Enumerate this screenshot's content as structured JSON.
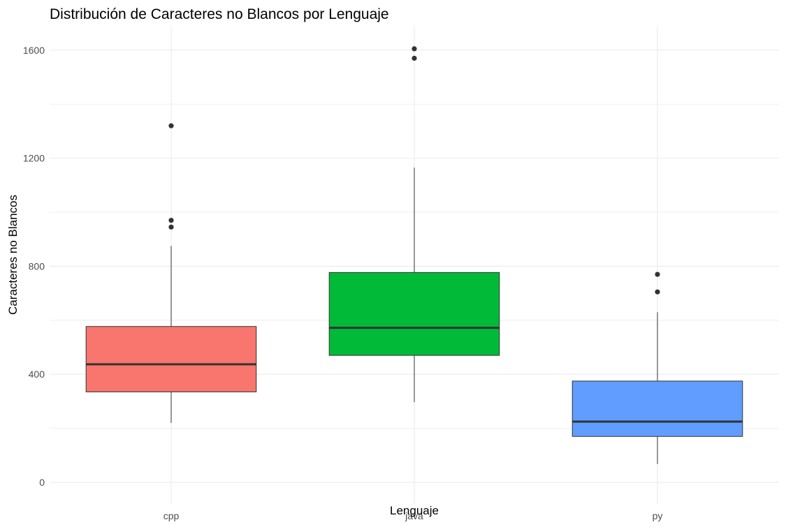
{
  "chart_data": {
    "type": "boxplot",
    "title": "Distribución de Caracteres no Blancos por Lenguaje",
    "xlabel": "Lenguaje",
    "ylabel": "Caracteres no Blancos",
    "ylim": [
      -80,
      1690
    ],
    "yticks": [
      0,
      400,
      800,
      1200,
      1600
    ],
    "grid": true,
    "legend": "none",
    "categories": [
      "cpp",
      "java",
      "py"
    ],
    "series": [
      {
        "category": "cpp",
        "color": "#F8766D",
        "whisker_low": 220,
        "q1": 335,
        "median": 437,
        "q3": 577,
        "whisker_high": 875,
        "outliers": [
          945,
          970,
          1320
        ]
      },
      {
        "category": "java",
        "color": "#00BA38",
        "whisker_low": 297,
        "q1": 470,
        "median": 572,
        "q3": 777,
        "whisker_high": 1165,
        "outliers": [
          1570,
          1605
        ]
      },
      {
        "category": "py",
        "color": "#619CFF",
        "whisker_low": 68,
        "q1": 170,
        "median": 225,
        "q3": 375,
        "whisker_high": 630,
        "outliers": [
          705,
          770
        ]
      }
    ]
  }
}
